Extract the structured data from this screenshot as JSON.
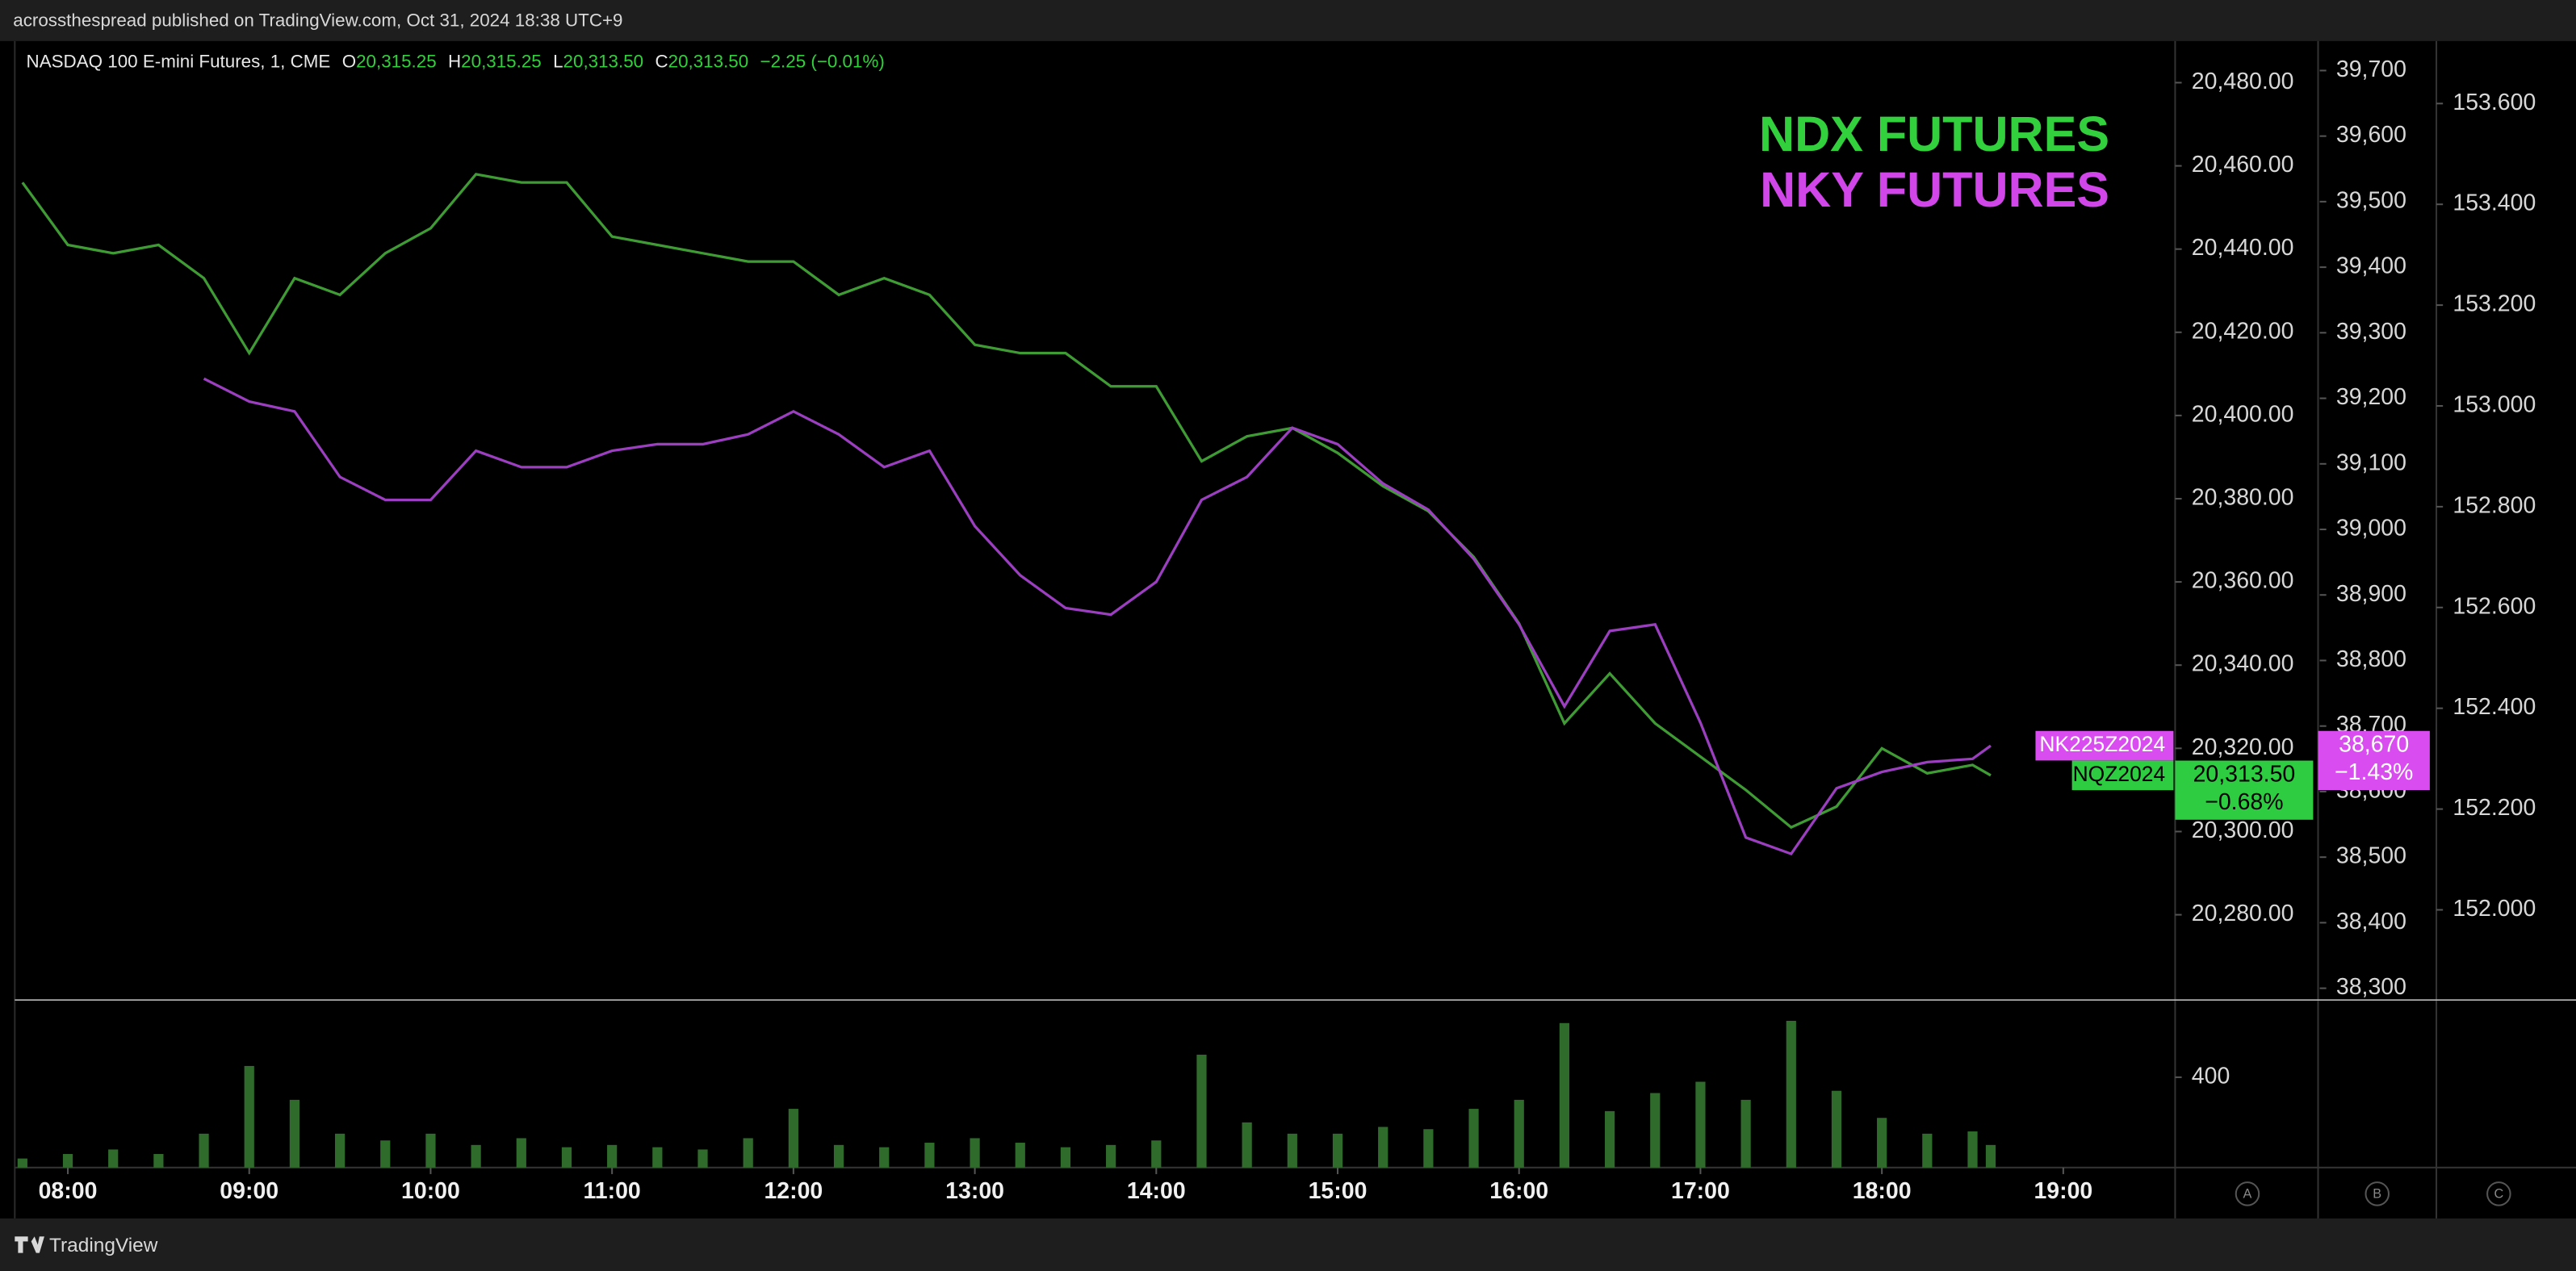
{
  "header": {
    "text": "acrossthespread published on TradingView.com, Oct 31, 2024 18:38 UTC+9"
  },
  "legend": {
    "symbol": "NASDAQ 100 E-mini Futures, 1, CME",
    "o_key": "O",
    "o": "20,315.25",
    "h_key": "H",
    "h": "20,315.25",
    "l_key": "L",
    "l": "20,313.50",
    "c_key": "C",
    "c": "20,313.50",
    "change": "−2.25 (−0.01%)"
  },
  "footer": {
    "brand": "TradingView"
  },
  "axis_buttons": [
    "A",
    "B",
    "C"
  ],
  "chart_data": {
    "type": "line",
    "x": [
      "07:45",
      "08:00",
      "08:15",
      "08:30",
      "08:45",
      "09:00",
      "09:15",
      "09:30",
      "09:45",
      "10:00",
      "10:15",
      "10:30",
      "10:45",
      "11:00",
      "11:15",
      "11:30",
      "11:45",
      "12:00",
      "12:15",
      "12:30",
      "12:45",
      "13:00",
      "13:15",
      "13:30",
      "13:45",
      "14:00",
      "14:15",
      "14:30",
      "14:45",
      "15:00",
      "15:15",
      "15:30",
      "15:45",
      "16:00",
      "16:15",
      "16:30",
      "16:45",
      "17:00",
      "17:15",
      "17:30",
      "17:45",
      "18:00",
      "18:15",
      "18:30",
      "18:36"
    ],
    "xlim": [
      "07:43",
      "19:37"
    ],
    "xticks": [
      "08:00",
      "09:00",
      "10:00",
      "11:00",
      "12:00",
      "13:00",
      "14:00",
      "15:00",
      "16:00",
      "17:00",
      "18:00",
      "19:00"
    ],
    "series": [
      {
        "name": "NDX FUTURES",
        "color": "#3f9c35",
        "title_color": "#33d03d",
        "axis": "y",
        "symbol": "NQZ2024",
        "last": {
          "value": 20313.5,
          "label": "20,313.50"
        },
        "change": "−0.68%",
        "tag_color": "#2ecc40",
        "values": [
          20456,
          20441,
          20439,
          20441,
          20433,
          20415,
          20433,
          20429,
          20439,
          20445,
          20458,
          20456,
          20456,
          20443,
          20441,
          20439,
          20437,
          20437,
          20429,
          20433,
          20429,
          20417,
          20415,
          20415,
          20407,
          20407,
          20389,
          20395,
          20397,
          20391,
          20383,
          20377,
          20366,
          20350,
          20326,
          20338,
          20326,
          20318,
          20310,
          20301,
          20306,
          20320,
          20314,
          20316,
          20313.5
        ]
      },
      {
        "name": "NKY FUTURES",
        "color": "#9b3fc0",
        "title_color": "#d046e8",
        "axis": "y2",
        "symbol": "NK225Z2024",
        "last": {
          "value": 38670,
          "label": "38,670"
        },
        "change": "−1.43%",
        "tag_color": "#d94df0",
        "values": [
          null,
          null,
          null,
          null,
          39230,
          39195,
          39180,
          39080,
          39045,
          39045,
          39120,
          39095,
          39095,
          39120,
          39130,
          39130,
          39145,
          39180,
          39145,
          39095,
          39120,
          39005,
          38930,
          38880,
          38870,
          38920,
          39045,
          39080,
          39155,
          39130,
          39070,
          39030,
          38955,
          38855,
          38730,
          38845,
          38855,
          38705,
          38530,
          38505,
          38605,
          38630,
          38645,
          38650,
          38670
        ]
      }
    ],
    "ylim": [
      20259.5,
      20490
    ],
    "yticks": [
      {
        "value": 20280,
        "label": "20,280.00"
      },
      {
        "value": 20300,
        "label": "20,300.00"
      },
      {
        "value": 20320,
        "label": "20,320.00"
      },
      {
        "value": 20340,
        "label": "20,340.00"
      },
      {
        "value": 20360,
        "label": "20,360.00"
      },
      {
        "value": 20380,
        "label": "20,380.00"
      },
      {
        "value": 20400,
        "label": "20,400.00"
      },
      {
        "value": 20420,
        "label": "20,420.00"
      },
      {
        "value": 20440,
        "label": "20,440.00"
      },
      {
        "value": 20460,
        "label": "20,460.00"
      },
      {
        "value": 20480,
        "label": "20,480.00"
      }
    ],
    "y2lim": [
      38282,
      39745
    ],
    "y2ticks": [
      {
        "value": 38300,
        "label": "38,300"
      },
      {
        "value": 38400,
        "label": "38,400"
      },
      {
        "value": 38500,
        "label": "38,500"
      },
      {
        "value": 38600,
        "label": "38,600"
      },
      {
        "value": 38700,
        "label": "38,700"
      },
      {
        "value": 38800,
        "label": "38,800"
      },
      {
        "value": 38900,
        "label": "38,900"
      },
      {
        "value": 39000,
        "label": "39,000"
      },
      {
        "value": 39100,
        "label": "39,100"
      },
      {
        "value": 39200,
        "label": "39,200"
      },
      {
        "value": 39300,
        "label": "39,300"
      },
      {
        "value": 39400,
        "label": "39,400"
      },
      {
        "value": 39500,
        "label": "39,500"
      },
      {
        "value": 39600,
        "label": "39,600"
      },
      {
        "value": 39700,
        "label": "39,700"
      }
    ],
    "y3lim": [
      151.821,
      153.724
    ],
    "y3ticks": [
      {
        "value": 152,
        "label": "152.000"
      },
      {
        "value": 152.2,
        "label": "152.200"
      },
      {
        "value": 152.4,
        "label": "152.400"
      },
      {
        "value": 152.6,
        "label": "152.600"
      },
      {
        "value": 152.8,
        "label": "152.800"
      },
      {
        "value": 153,
        "label": "153.000"
      },
      {
        "value": 153.2,
        "label": "153.200"
      },
      {
        "value": 153.4,
        "label": "153.400"
      },
      {
        "value": 153.6,
        "label": "153.600"
      }
    ],
    "volume": {
      "color": "#2f6b2a",
      "ylim": [
        0,
        742
      ],
      "yticks": [
        400
      ],
      "values": [
        40,
        60,
        80,
        60,
        150,
        450,
        300,
        150,
        120,
        150,
        100,
        130,
        90,
        100,
        90,
        80,
        130,
        260,
        100,
        90,
        110,
        130,
        110,
        90,
        100,
        120,
        500,
        200,
        150,
        150,
        180,
        170,
        260,
        300,
        640,
        250,
        330,
        380,
        300,
        650,
        340,
        220,
        150,
        160,
        100
      ]
    }
  }
}
